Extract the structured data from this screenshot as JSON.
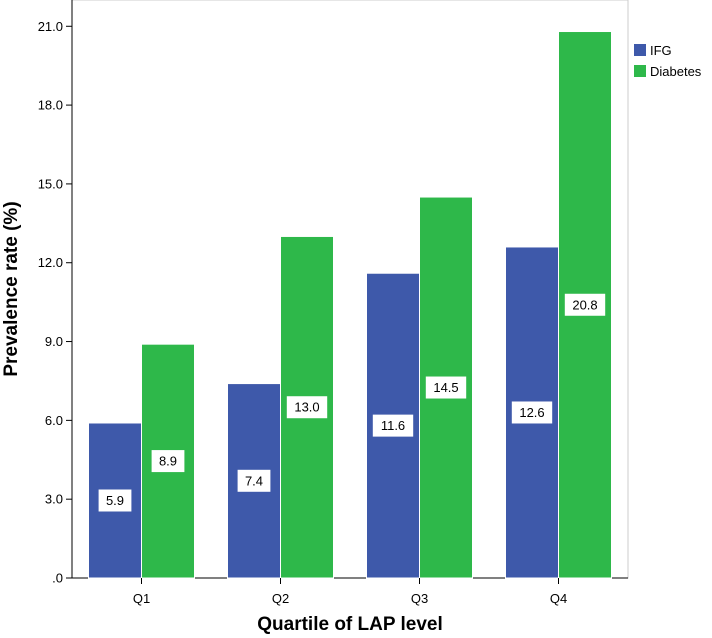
{
  "chart_data": {
    "type": "bar",
    "title": "",
    "xlabel": "Quartile of LAP level",
    "ylabel": "Prevalence rate (%)",
    "categories": [
      "Q1",
      "Q2",
      "Q3",
      "Q4"
    ],
    "ylim": [
      0,
      22
    ],
    "yticks": [
      {
        "value": 0,
        "label": ".0"
      },
      {
        "value": 3,
        "label": "3.0"
      },
      {
        "value": 6,
        "label": "6.0"
      },
      {
        "value": 9,
        "label": "9.0"
      },
      {
        "value": 12,
        "label": "12.0"
      },
      {
        "value": 15,
        "label": "15.0"
      },
      {
        "value": 18,
        "label": "18.0"
      },
      {
        "value": 21,
        "label": "21.0"
      }
    ],
    "series": [
      {
        "name": "IFG",
        "color": "#3e59aa",
        "values": [
          5.9,
          7.4,
          11.6,
          12.6
        ],
        "labels": [
          "5.9",
          "7.4",
          "11.6",
          "12.6"
        ]
      },
      {
        "name": "Diabetes",
        "color": "#2eb84a",
        "values": [
          8.9,
          13.0,
          14.5,
          20.8
        ],
        "labels": [
          "8.9",
          "13.0",
          "14.5",
          "20.8"
        ]
      }
    ],
    "grid": false,
    "legend_position": "top-right"
  }
}
